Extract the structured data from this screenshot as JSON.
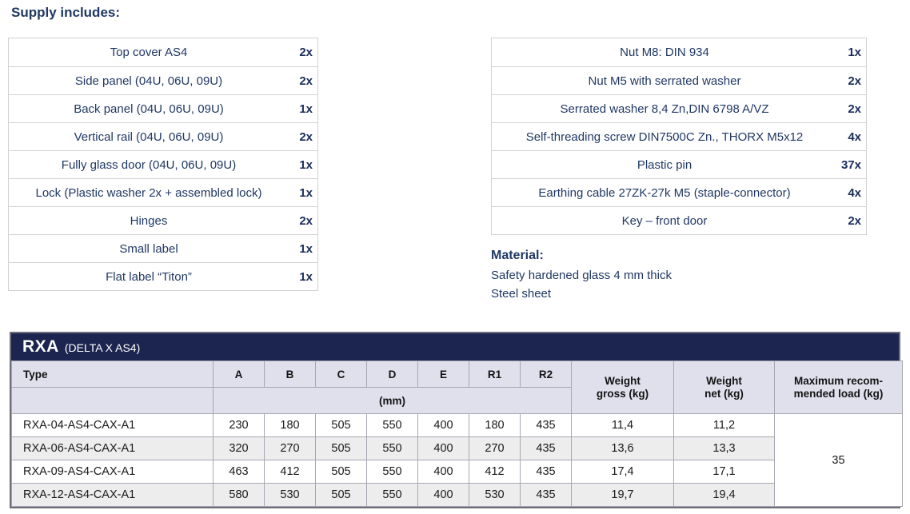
{
  "supply": {
    "heading": "Supply includes:",
    "left_items": [
      {
        "name": "Top cover AS4",
        "qty": "2x"
      },
      {
        "name": "Side panel (04U, 06U, 09U)",
        "qty": "2x"
      },
      {
        "name": "Back panel (04U, 06U, 09U)",
        "qty": "1x"
      },
      {
        "name": "Vertical rail (04U, 06U, 09U)",
        "qty": "2x"
      },
      {
        "name": "Fully glass door (04U, 06U, 09U)",
        "qty": "1x"
      },
      {
        "name": "Lock (Plastic washer 2x + assembled lock)",
        "qty": "1x"
      },
      {
        "name": "Hinges",
        "qty": "2x"
      },
      {
        "name": "Small label",
        "qty": "1x"
      },
      {
        "name": "Flat label “Titon”",
        "qty": "1x"
      }
    ],
    "right_items": [
      {
        "name": "Nut M8: DIN 934",
        "qty": "1x"
      },
      {
        "name": "Nut M5 with serrated washer",
        "qty": "2x"
      },
      {
        "name": "Serrated washer 8,4 Zn,DIN 6798 A/VZ",
        "qty": "2x"
      },
      {
        "name": "Self-threading screw DIN7500C Zn., THORX M5x12",
        "qty": "4x"
      },
      {
        "name": "Plastic pin",
        "qty": "37x"
      },
      {
        "name": "Earthing cable 27ZK-27k M5 (staple-connector)",
        "qty": "4x"
      },
      {
        "name": "Key – front door",
        "qty": "2x"
      }
    ]
  },
  "material": {
    "heading": "Material:",
    "lines": [
      "Safety hardened glass 4 mm thick",
      "Steel sheet"
    ]
  },
  "spec_table": {
    "title": "RXA",
    "subtitle": "(DELTA X AS4)",
    "type_label": "Type",
    "dim_cols": [
      "A",
      "B",
      "C",
      "D",
      "E",
      "R1",
      "R2"
    ],
    "mm_label": "(mm)",
    "weight_gross_label": "Weight\ngross (kg)",
    "weight_net_label": "Weight\nnet (kg)",
    "max_load_label": "Maximum recom-\nmended load (kg)",
    "max_load_value": "35",
    "rows": [
      {
        "type": "RXA-04-AS4-CAX-A1",
        "dims": [
          "230",
          "180",
          "505",
          "550",
          "400",
          "180",
          "435"
        ],
        "gross": "11,4",
        "net": "11,2"
      },
      {
        "type": "RXA-06-AS4-CAX-A1",
        "dims": [
          "320",
          "270",
          "505",
          "550",
          "400",
          "270",
          "435"
        ],
        "gross": "13,6",
        "net": "13,3"
      },
      {
        "type": "RXA-09-AS4-CAX-A1",
        "dims": [
          "463",
          "412",
          "505",
          "550",
          "400",
          "412",
          "435"
        ],
        "gross": "17,4",
        "net": "17,1"
      },
      {
        "type": "RXA-12-AS4-CAX-A1",
        "dims": [
          "580",
          "530",
          "505",
          "550",
          "400",
          "530",
          "435"
        ],
        "gross": "19,7",
        "net": "19,4"
      }
    ],
    "colors": {
      "band_navy": "#1b2550",
      "header_lavender": "#dfe0ec",
      "row_stripe": "#ededed",
      "body_text_navy": "#1f3864"
    }
  }
}
